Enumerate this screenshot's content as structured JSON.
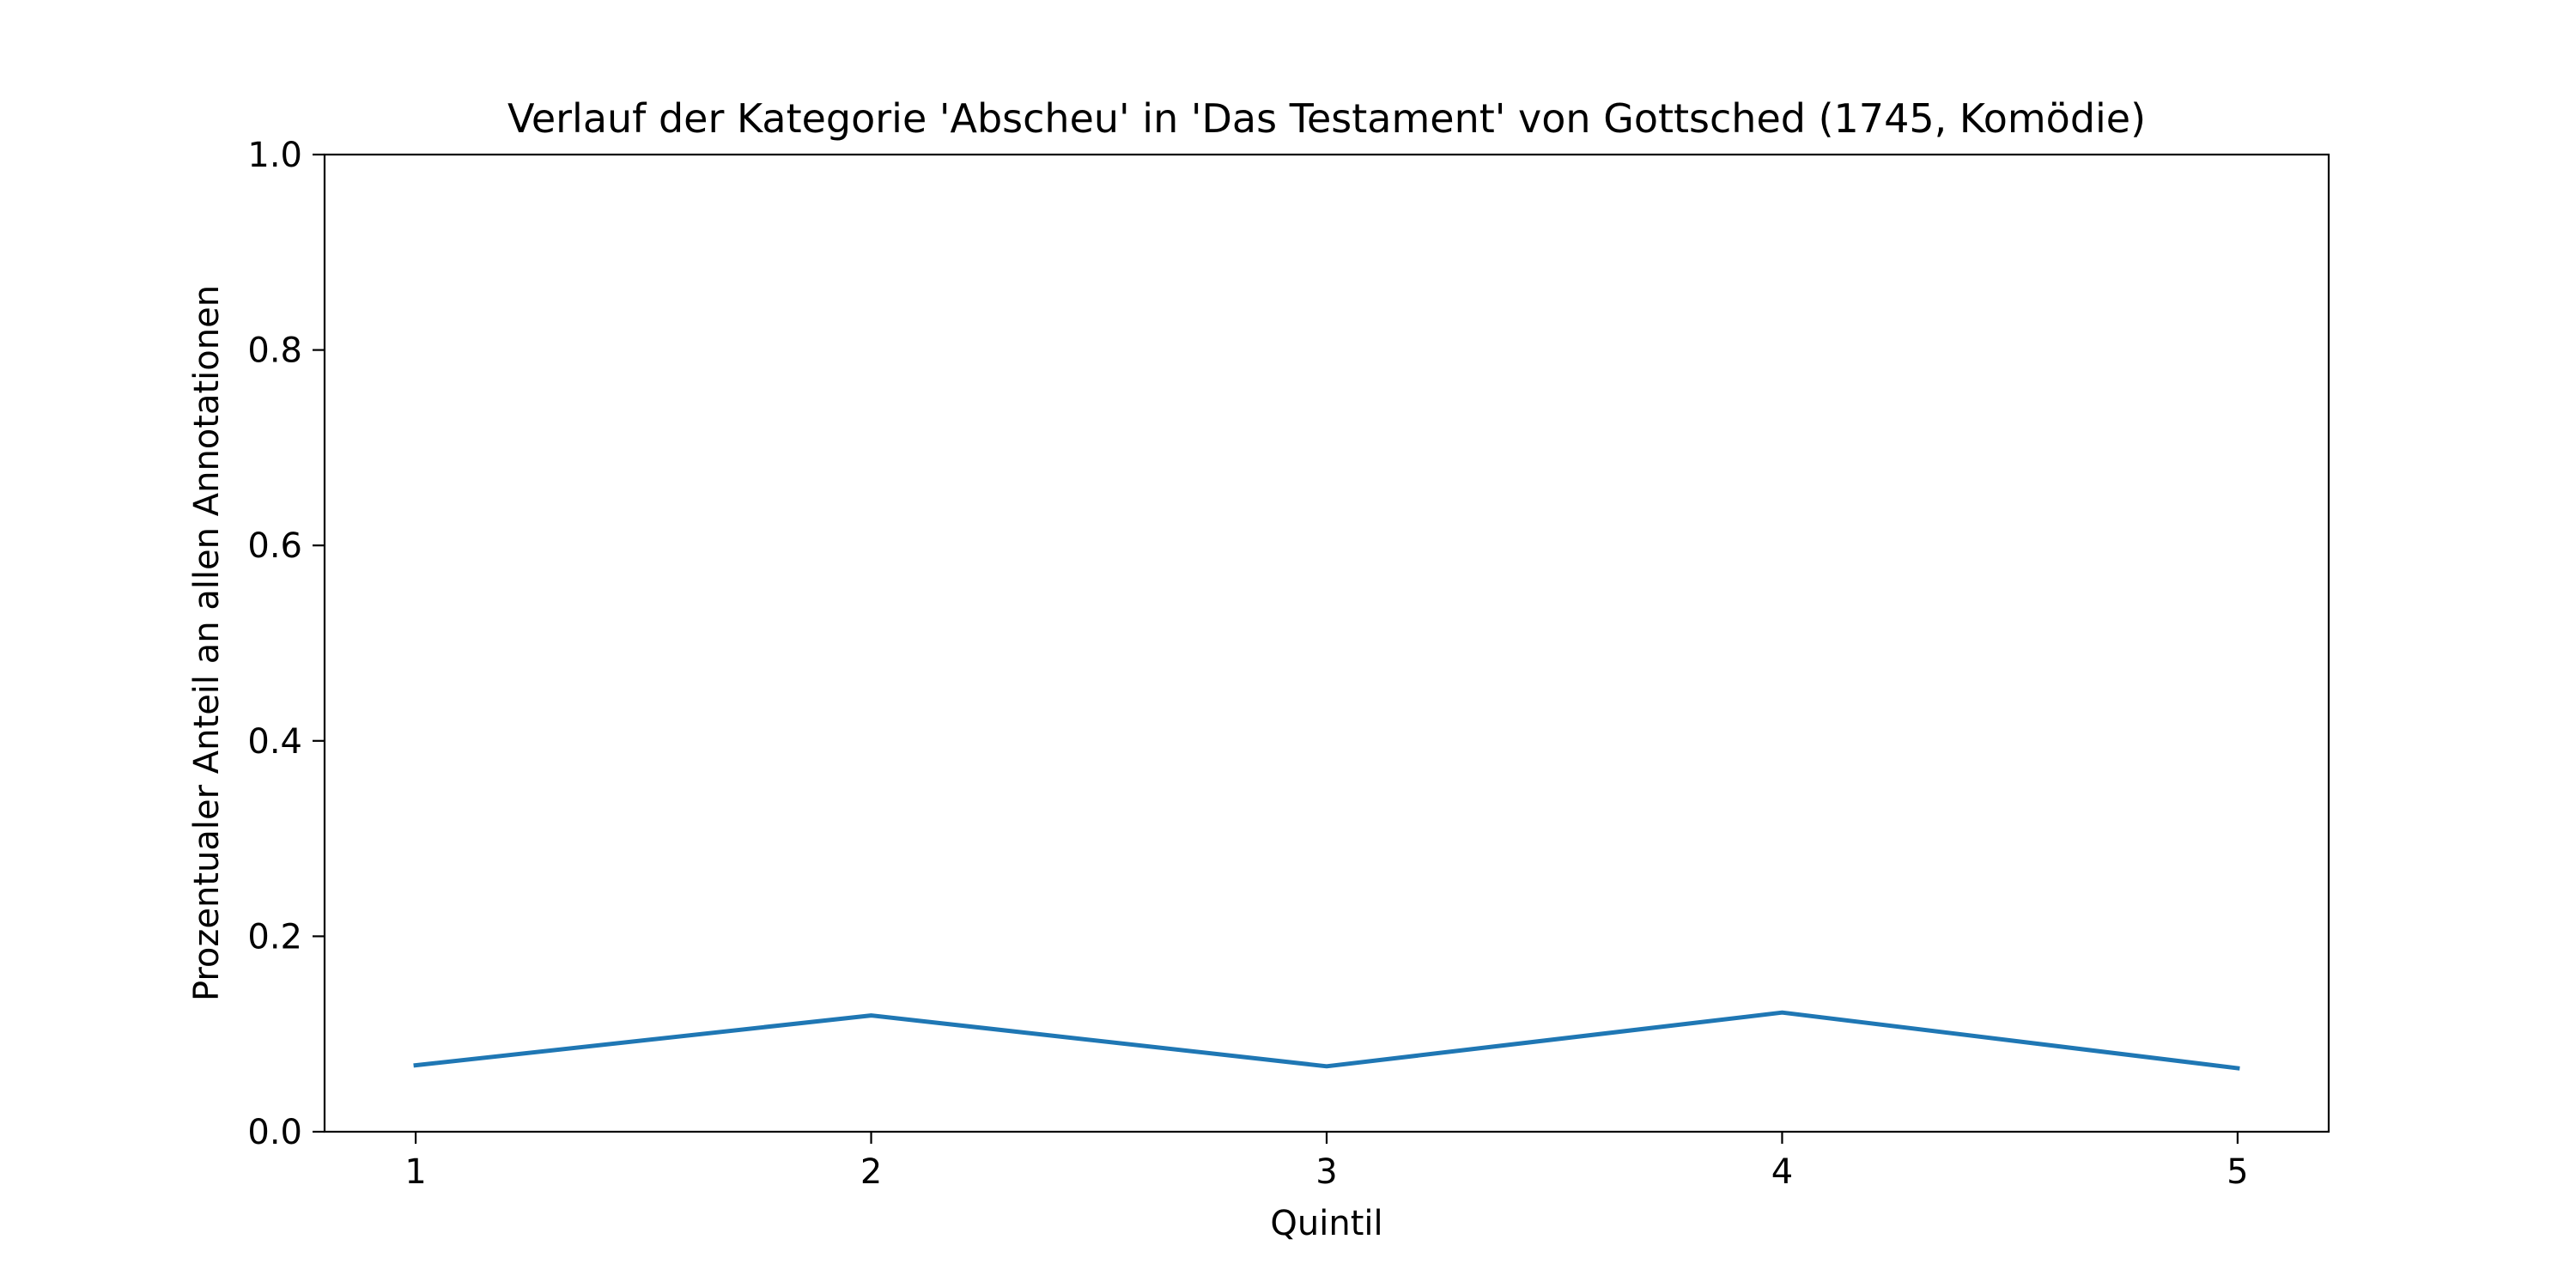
{
  "chart_data": {
    "type": "line",
    "title": "Verlauf der Kategorie 'Abscheu' in 'Das Testament' von Gottsched (1745, Komödie)",
    "xlabel": "Quintil",
    "ylabel": "Prozentualer Anteil an allen Annotationen",
    "x": [
      1,
      2,
      3,
      4,
      5
    ],
    "xticks": [
      "1",
      "2",
      "3",
      "4",
      "5"
    ],
    "yticks": [
      "0.0",
      "0.2",
      "0.4",
      "0.6",
      "0.8",
      "1.0"
    ],
    "ylim": [
      0,
      1
    ],
    "xlim": [
      0.8,
      5.2
    ],
    "grid": false,
    "series": [
      {
        "values": [
          0.068,
          0.119,
          0.067,
          0.122,
          0.065
        ],
        "color": "#1f77b4"
      }
    ]
  }
}
